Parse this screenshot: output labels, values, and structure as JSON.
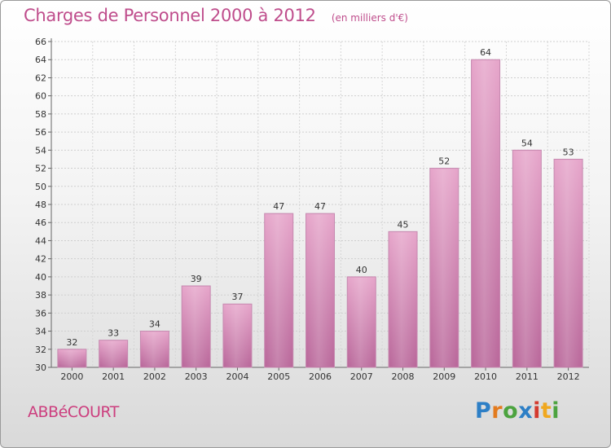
{
  "header": {
    "title": "Charges de Personnel 2000 à 2012",
    "subtitle": "(en milliers d'€)"
  },
  "footer": {
    "commune": "ABBéCOURT",
    "logo": [
      "P",
      "r",
      "o",
      "x",
      "i",
      "t",
      "i"
    ]
  },
  "colors": {
    "bar": "#d07aaa",
    "bar_light": "#e7a9cc",
    "text_accent": "#bf4d8c"
  },
  "chart_data": {
    "type": "bar",
    "title": "Charges de Personnel 2000 à 2012",
    "subtitle": "(en milliers d'€)",
    "xlabel": "",
    "ylabel": "",
    "categories": [
      "2000",
      "2001",
      "2002",
      "2003",
      "2004",
      "2005",
      "2006",
      "2007",
      "2008",
      "2009",
      "2010",
      "2011",
      "2012"
    ],
    "values": [
      32,
      33,
      34,
      39,
      37,
      47,
      47,
      40,
      45,
      52,
      64,
      54,
      53
    ],
    "ylim": [
      30,
      66
    ],
    "yticks": [
      30,
      32,
      34,
      36,
      38,
      40,
      42,
      44,
      46,
      48,
      50,
      52,
      54,
      56,
      58,
      60,
      62,
      64,
      66
    ],
    "grid": true,
    "legend": "none"
  }
}
